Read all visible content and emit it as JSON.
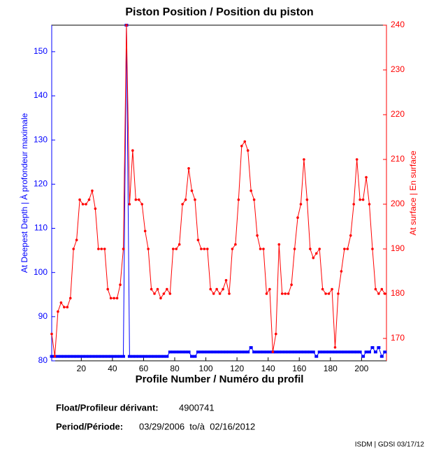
{
  "chart_data": {
    "type": "line",
    "title": "Piston Position / Position du piston",
    "x_label": "Profile Number / Numéro du profil",
    "y_label": "At Deepest Depth | À profondeur maximale",
    "y2_label": "At surface | En surface",
    "x": [
      1,
      3,
      5,
      7,
      9,
      11,
      13,
      15,
      17,
      19,
      21,
      23,
      25,
      27,
      29,
      31,
      33,
      35,
      37,
      39,
      41,
      43,
      45,
      47,
      49,
      51,
      53,
      55,
      57,
      59,
      61,
      63,
      65,
      67,
      69,
      71,
      73,
      75,
      77,
      79,
      81,
      83,
      85,
      87,
      89,
      91,
      93,
      95,
      97,
      99,
      101,
      103,
      105,
      107,
      109,
      111,
      113,
      115,
      117,
      119,
      121,
      123,
      125,
      127,
      129,
      131,
      133,
      135,
      137,
      139,
      141,
      143,
      145,
      147,
      149,
      151,
      153,
      155,
      157,
      159,
      161,
      163,
      165,
      167,
      169,
      171,
      173,
      175,
      177,
      179,
      181,
      183,
      185,
      187,
      189,
      191,
      193,
      195,
      197,
      199,
      201,
      203,
      205,
      207,
      209,
      211,
      213,
      215
    ],
    "series": [
      {
        "color": "#0000ff",
        "axis": "y",
        "values": [
          81,
          81,
          81,
          81,
          81,
          81,
          81,
          81,
          81,
          81,
          81,
          81,
          81,
          81,
          81,
          81,
          81,
          81,
          81,
          81,
          81,
          81,
          81,
          81,
          156,
          81,
          81,
          81,
          81,
          81,
          81,
          81,
          81,
          81,
          81,
          81,
          81,
          81,
          82,
          82,
          82,
          82,
          82,
          82,
          82,
          81,
          81,
          82,
          82,
          82,
          82,
          82,
          82,
          82,
          82,
          82,
          82,
          82,
          82,
          82,
          82,
          82,
          82,
          82,
          83,
          82,
          82,
          82,
          82,
          82,
          82,
          82,
          82,
          82,
          82,
          82,
          82,
          82,
          82,
          82,
          82,
          82,
          82,
          82,
          82,
          81,
          82,
          82,
          82,
          82,
          82,
          82,
          82,
          82,
          82,
          82,
          82,
          82,
          82,
          82,
          81,
          82,
          82,
          83,
          82,
          83,
          81,
          82
        ]
      },
      {
        "color": "#ff0000",
        "axis": "y2",
        "values": [
          171,
          166,
          176,
          178,
          177,
          177,
          179,
          190,
          192,
          201,
          200,
          200,
          201,
          203,
          199,
          190,
          190,
          190,
          181,
          179,
          179,
          179,
          182,
          190,
          240,
          200,
          212,
          201,
          201,
          200,
          194,
          190,
          181,
          180,
          181,
          179,
          180,
          181,
          180,
          190,
          190,
          191,
          200,
          201,
          208,
          203,
          201,
          192,
          190,
          190,
          190,
          181,
          180,
          181,
          180,
          181,
          183,
          180,
          190,
          191,
          201,
          213,
          214,
          212,
          203,
          201,
          193,
          190,
          190,
          180,
          181,
          167,
          171,
          191,
          180,
          180,
          180,
          182,
          190,
          197,
          200,
          210,
          201,
          190,
          188,
          189,
          190,
          181,
          180,
          180,
          181,
          168,
          180,
          185,
          190,
          190,
          193,
          200,
          210,
          201,
          201,
          206,
          200,
          190,
          181,
          180,
          181,
          180
        ]
      }
    ],
    "xlim": [
      1,
      216
    ],
    "xticks": [
      20,
      40,
      60,
      80,
      100,
      120,
      140,
      160,
      180,
      200
    ],
    "ylim": [
      80,
      156
    ],
    "yticks": [
      80,
      90,
      100,
      110,
      120,
      130,
      140,
      150
    ],
    "y2lim": [
      165,
      240
    ],
    "y2ticks": [
      170,
      180,
      190,
      200,
      210,
      220,
      230,
      240
    ]
  },
  "footer": {
    "float_label": "Float/Profileur dérivant:",
    "float_value": "4900741",
    "period_label": "Period/Période:",
    "period_value": "03/29/2006  to/à  02/16/2012",
    "credit": "ISDM | GDSI 03/17/12"
  }
}
